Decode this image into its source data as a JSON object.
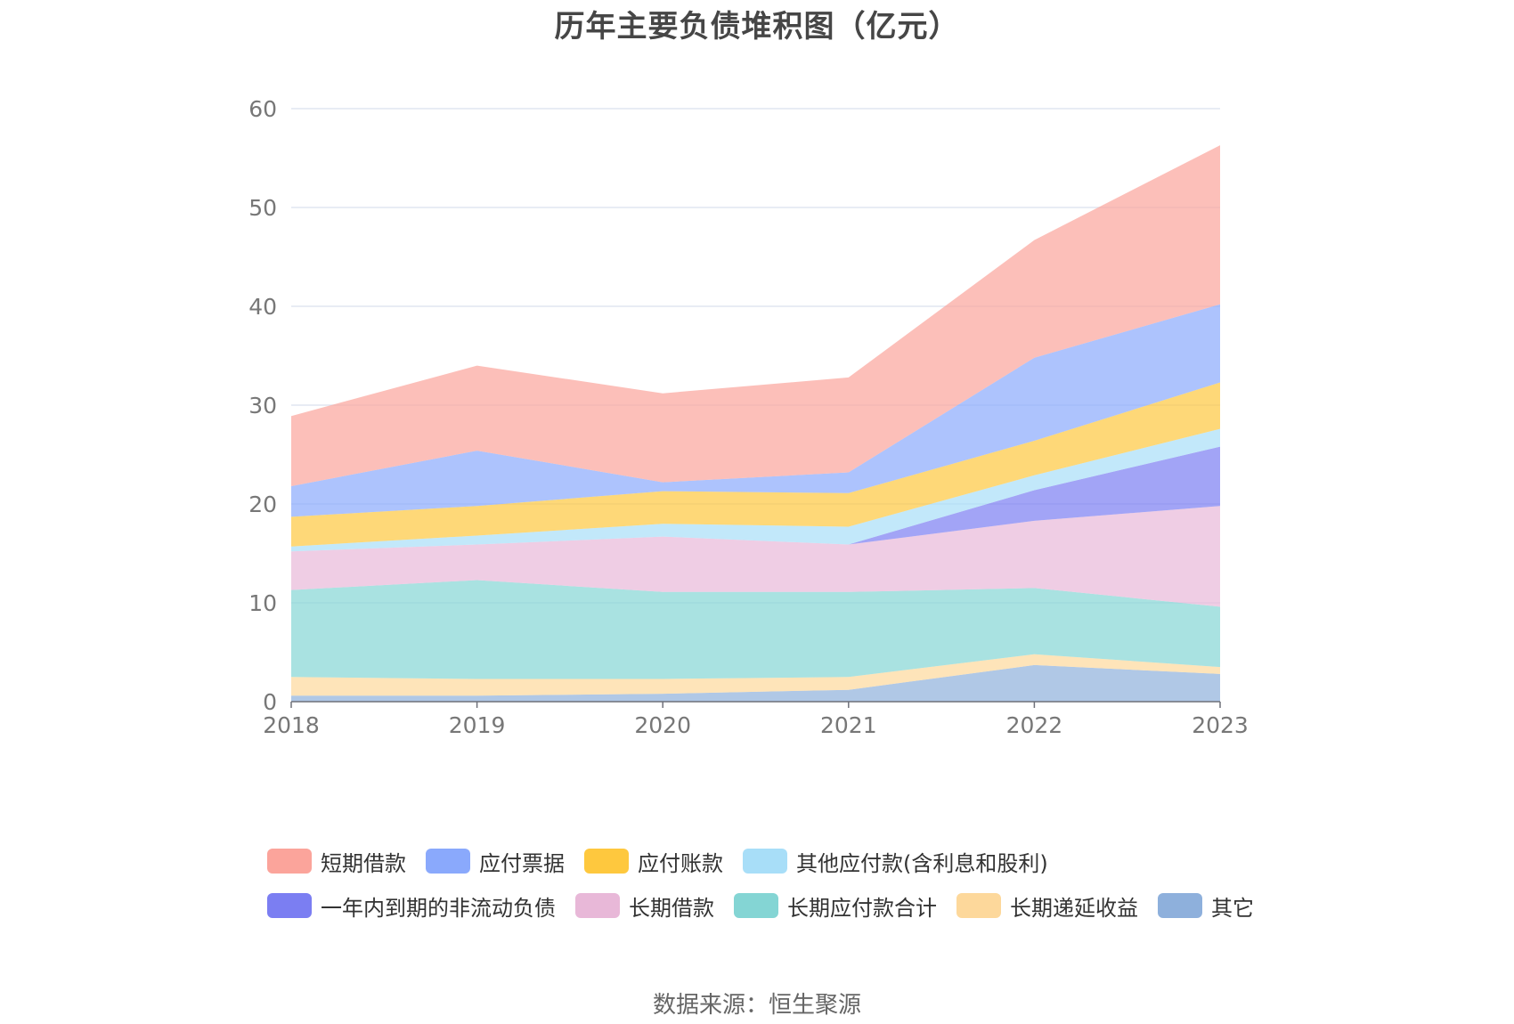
{
  "title": "历年主要负债堆积图（亿元）",
  "source": "数据来源：恒生聚源",
  "chart_data": {
    "type": "area",
    "stacked": true,
    "categories": [
      "2018",
      "2019",
      "2020",
      "2021",
      "2022",
      "2023"
    ],
    "ylim": [
      0,
      60
    ],
    "yticks": [
      0,
      10,
      20,
      30,
      40,
      50,
      60
    ],
    "grid": true,
    "legend_position": "bottom",
    "series": [
      {
        "name": "其它",
        "color": "#8eb0dc",
        "values": [
          0.6,
          0.6,
          0.8,
          1.2,
          3.7,
          2.8
        ]
      },
      {
        "name": "长期递延收益",
        "color": "#fdd89b",
        "values": [
          1.9,
          1.7,
          1.5,
          1.3,
          1.1,
          0.7
        ]
      },
      {
        "name": "长期应付款合计",
        "color": "#84d5d4",
        "values": [
          8.8,
          10.0,
          8.8,
          8.6,
          6.7,
          6.1
        ]
      },
      {
        "name": "长期借款",
        "color": "#e8b8d8",
        "values": [
          3.9,
          3.6,
          5.6,
          4.8,
          6.8,
          10.2
        ]
      },
      {
        "name": "一年内到期的非流动负债",
        "color": "#7b7ef2",
        "values": [
          0,
          0,
          0,
          0,
          3.1,
          6.0
        ]
      },
      {
        "name": "其他应付款(含利息和股利)",
        "color": "#a8def8",
        "values": [
          0.5,
          0.9,
          1.3,
          1.8,
          1.5,
          1.8
        ]
      },
      {
        "name": "应付账款",
        "color": "#fec83e",
        "values": [
          3.0,
          3.0,
          3.3,
          3.4,
          3.5,
          4.7
        ]
      },
      {
        "name": "应付票据",
        "color": "#8aa9fc",
        "values": [
          3.1,
          5.6,
          0.9,
          2.1,
          8.4,
          7.9
        ]
      },
      {
        "name": "短期借款",
        "color": "#fba49b",
        "values": [
          7.1,
          8.6,
          9.0,
          9.6,
          11.9,
          16.1
        ]
      }
    ],
    "legend_order": [
      "短期借款",
      "应付票据",
      "应付账款",
      "其他应付款(含利息和股利)",
      "一年内到期的非流动负债",
      "长期借款",
      "长期应付款合计",
      "长期递延收益",
      "其它"
    ]
  }
}
